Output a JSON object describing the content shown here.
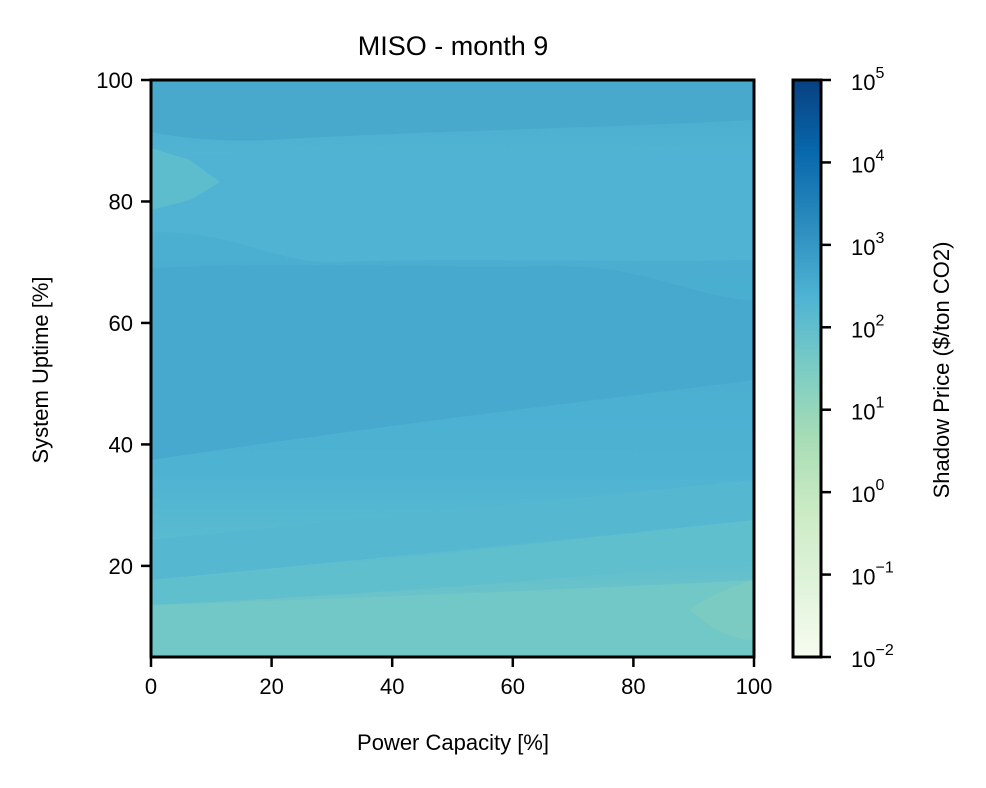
{
  "chart_data": {
    "type": "heatmap",
    "subtype": "filled-contour",
    "title": "MISO - month 9",
    "xlabel": "Power Capacity [%]",
    "ylabel": "System Uptime [%]",
    "xlim": [
      0,
      100
    ],
    "ylim": [
      5,
      100
    ],
    "xticks": [
      0,
      20,
      40,
      60,
      80,
      100
    ],
    "yticks": [
      20,
      40,
      60,
      80,
      100
    ],
    "xtick_labels": [
      "0",
      "20",
      "40",
      "60",
      "80",
      "100"
    ],
    "ytick_labels": [
      "20",
      "40",
      "60",
      "80",
      "100"
    ],
    "colorbar": {
      "label": "Shadow Price ($/ton CO2)",
      "scale": "log",
      "range": [
        0.01,
        100000
      ],
      "ticks": [
        {
          "base": "10",
          "exp": "5",
          "value": 100000
        },
        {
          "base": "10",
          "exp": "4",
          "value": 10000
        },
        {
          "base": "10",
          "exp": "3",
          "value": 1000
        },
        {
          "base": "10",
          "exp": "2",
          "value": 100
        },
        {
          "base": "10",
          "exp": "1",
          "value": 10
        },
        {
          "base": "10",
          "exp": "0",
          "value": 1
        },
        {
          "base": "10",
          "exp": "−1",
          "value": 0.1
        },
        {
          "base": "10",
          "exp": "−2",
          "value": 0.01
        }
      ],
      "colormap": "GnBu",
      "colors": [
        "#f7fcf0",
        "#e0f3db",
        "#ccebc5",
        "#a8ddb5",
        "#7bccc4",
        "#4eb3d3",
        "#2b8cbe",
        "#0868ac",
        "#084081"
      ]
    },
    "x": [
      0,
      20,
      40,
      60,
      80,
      100
    ],
    "y": [
      5,
      10,
      15,
      20,
      30,
      40,
      60,
      80,
      100
    ],
    "z": [
      [
        35,
        38,
        40,
        42,
        40,
        45
      ],
      [
        45,
        50,
        52,
        55,
        55,
        52
      ],
      [
        70,
        75,
        80,
        85,
        90,
        95
      ],
      [
        100,
        120,
        140,
        160,
        180,
        190
      ],
      [
        200,
        220,
        240,
        250,
        255,
        250
      ],
      [
        250,
        260,
        270,
        280,
        270,
        260
      ],
      [
        260,
        265,
        270,
        275,
        270,
        265
      ],
      [
        190,
        230,
        250,
        240,
        220,
        200
      ],
      [
        210,
        215,
        220,
        225,
        225,
        220
      ]
    ]
  }
}
